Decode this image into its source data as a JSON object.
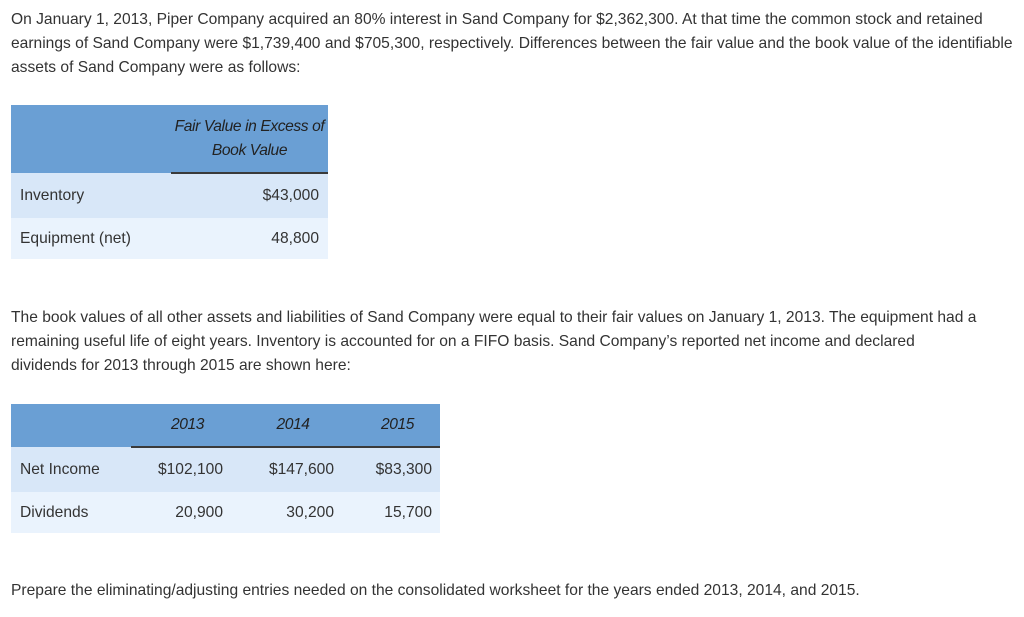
{
  "intro_paragraph": "On January 1, 2013, Piper Company acquired an 80% interest in Sand Company for $2,362,300. At that time the common stock and retained earnings of Sand Company were $1,739,400 and $705,300, respectively. Differences between the fair value and the book value of the identifiable assets of Sand Company were as follows:",
  "fair_value_table": {
    "header": "Fair Value in Excess of Book Value",
    "rows": [
      {
        "label": "Inventory",
        "value": "$43,000"
      },
      {
        "label": "Equipment (net)",
        "value": "48,800"
      }
    ]
  },
  "middle_paragraph": "The book values of all other assets and liabilities of Sand Company were equal to their fair values on January 1, 2013. The equipment had a remaining useful life of eight years. Inventory is accounted for on a FIFO basis. Sand Company’s reported net income and declared dividends for 2013 through 2015 are shown here:",
  "income_table": {
    "years": [
      "2013",
      "2014",
      "2015"
    ],
    "rows": [
      {
        "label": "Net Income",
        "values": [
          "$102,100",
          "$147,600",
          "$83,300"
        ]
      },
      {
        "label": "Dividends",
        "values": [
          "20,900",
          "30,200",
          "15,700"
        ]
      }
    ]
  },
  "instruction_paragraph": "Prepare the eliminating/adjusting entries needed on the consolidated worksheet for the years ended 2013, 2014, and 2015."
}
